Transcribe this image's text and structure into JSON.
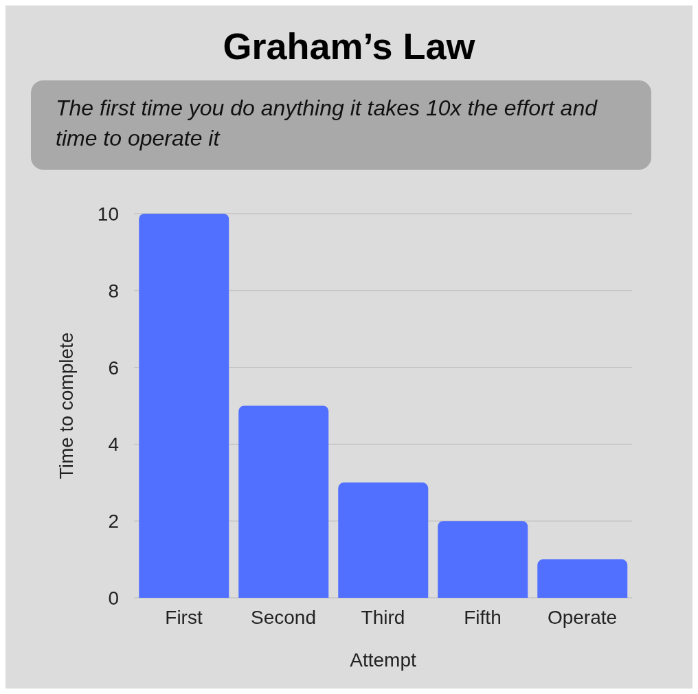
{
  "chart_data": {
    "type": "bar",
    "title": "Graham’s Law",
    "subtitle": "The first time you do anything it takes 10x the effort and time to operate it",
    "xlabel": "Attempt",
    "ylabel": "Time to complete",
    "categories": [
      "First",
      "Second",
      "Third",
      "Fifth",
      "Operate"
    ],
    "values": [
      10,
      5,
      3,
      2,
      1
    ],
    "color": "#5170ff",
    "ylim": [
      0,
      10
    ],
    "yticks": [
      0,
      2,
      4,
      6,
      8,
      10
    ],
    "grid": "y",
    "legend": false
  }
}
